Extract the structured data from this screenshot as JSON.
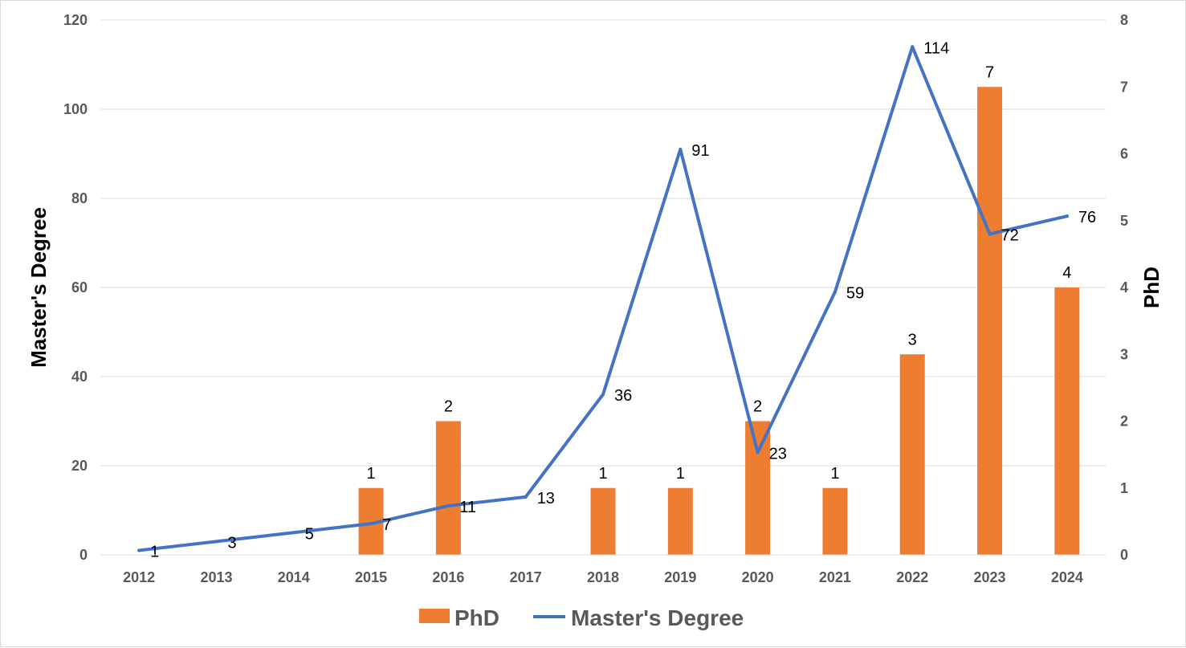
{
  "chart_data": {
    "type": "bar+line",
    "categories": [
      "2012",
      "2013",
      "2014",
      "2015",
      "2016",
      "2017",
      "2018",
      "2019",
      "2020",
      "2021",
      "2022",
      "2023",
      "2024"
    ],
    "series": [
      {
        "name": "PhD",
        "type": "bar",
        "axis": "right",
        "color": "#ED7D31",
        "values": [
          null,
          null,
          null,
          1,
          2,
          null,
          1,
          1,
          2,
          1,
          3,
          7,
          4
        ]
      },
      {
        "name": "Master's Degree",
        "type": "line",
        "axis": "left",
        "color": "#4472C4",
        "values": [
          1,
          3,
          5,
          7,
          11,
          13,
          36,
          91,
          23,
          59,
          114,
          72,
          76
        ]
      }
    ],
    "ylabel_left": "Master's Degree",
    "ylabel_right": "PhD",
    "ylim_left": [
      0,
      120
    ],
    "yticks_left": [
      0,
      20,
      40,
      60,
      80,
      100,
      120
    ],
    "ylim_right": [
      0,
      8
    ],
    "yticks_right": [
      0,
      1,
      2,
      3,
      4,
      5,
      6,
      7,
      8
    ],
    "grid": true,
    "legend_position": "bottom"
  }
}
